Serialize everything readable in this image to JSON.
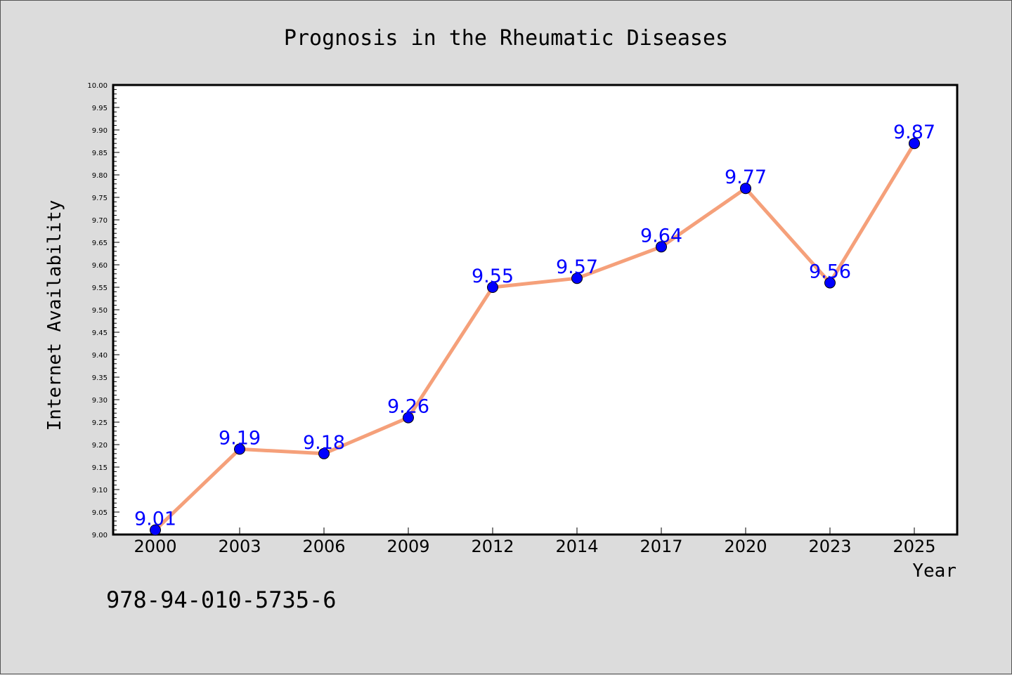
{
  "chart_data": {
    "type": "line",
    "title": "Prognosis in the Rheumatic Diseases",
    "xlabel": "Year",
    "ylabel": "Internet Availability",
    "categories": [
      "2000",
      "2003",
      "2006",
      "2009",
      "2012",
      "2014",
      "2017",
      "2020",
      "2023",
      "2025"
    ],
    "values": [
      9.01,
      9.19,
      9.18,
      9.26,
      9.55,
      9.57,
      9.64,
      9.77,
      9.56,
      9.87
    ],
    "data_labels": [
      "9.01",
      "9.19",
      "9.18",
      "9.26",
      "9.55",
      "9.57",
      "9.64",
      "9.77",
      "9.56",
      "9.87"
    ],
    "ylim": [
      9.0,
      10.0
    ],
    "y_ticks": [
      "9.00",
      "9.05",
      "9.10",
      "9.15",
      "9.20",
      "9.25",
      "9.30",
      "9.35",
      "9.40",
      "9.45",
      "9.50",
      "9.55",
      "9.60",
      "9.65",
      "9.70",
      "9.75",
      "9.80",
      "9.85",
      "9.90",
      "9.95",
      "10.00"
    ],
    "grid": false,
    "legend": "none",
    "line_color": "#f5a07a",
    "marker_color": "#0000ff",
    "label_color": "#0000ff"
  },
  "annotation": "978-94-010-5735-6"
}
